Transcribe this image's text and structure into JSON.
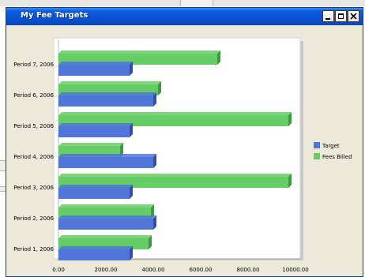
{
  "window": {
    "title": "My Fee Targets",
    "icons": {
      "minimize": "minimize-icon",
      "maximize": "maximize-icon",
      "close": "close-icon"
    }
  },
  "colors": {
    "target": "#4f76d8",
    "target_dark": "#2f4fa8",
    "fees_billed": "#66cc66",
    "fees_billed_dark": "#3f9a3f",
    "title_bar": "#0a52d4"
  },
  "chart_data": {
    "type": "bar",
    "orientation": "horizontal",
    "categories": [
      "Period 1, 2006",
      "Period 2, 2006",
      "Period 3, 2006",
      "Period 4, 2006",
      "Period 5, 2006",
      "Period 6, 2006",
      "Period 7, 2006"
    ],
    "series": [
      {
        "name": "Target",
        "values": [
          3000,
          4000,
          3000,
          4000,
          3000,
          4000,
          3000
        ]
      },
      {
        "name": "Fees Billed",
        "values": [
          3800,
          3900,
          9700,
          2600,
          9700,
          4200,
          6700
        ]
      }
    ],
    "xlim": [
      0,
      10000
    ],
    "xticks": [
      "0.00",
      "2000.00",
      "4000.00",
      "6000.00",
      "8000.00",
      "10000.00"
    ],
    "legend": {
      "position": "right",
      "entries": [
        "Target",
        "Fees Billed"
      ]
    },
    "grid": false
  }
}
